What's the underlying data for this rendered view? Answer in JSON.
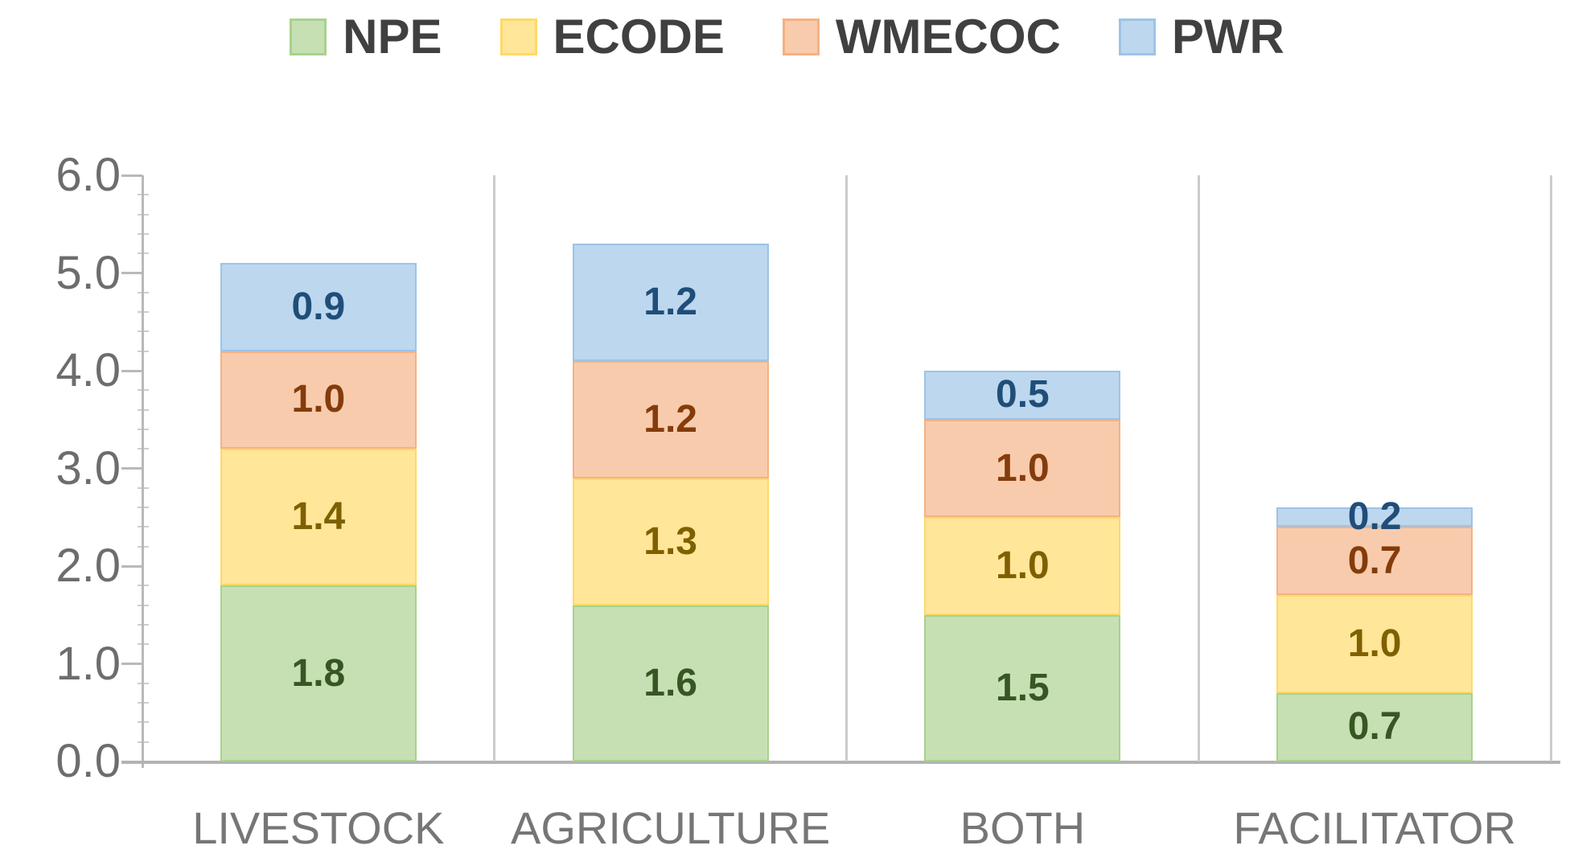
{
  "chart_data": {
    "type": "bar",
    "stacked": true,
    "legend_position": "top",
    "categories": [
      "LIVESTOCK",
      "AGRICULTURE",
      "BOTH",
      "FACILITATOR"
    ],
    "series": [
      {
        "name": "NPE",
        "fill": "#c6e0b4",
        "border": "#a9d18e",
        "label_color": "#375623",
        "values": [
          1.8,
          1.6,
          1.5,
          0.7
        ]
      },
      {
        "name": "ECODE",
        "fill": "#ffe699",
        "border": "#ffd966",
        "label_color": "#7f6000",
        "values": [
          1.4,
          1.3,
          1.0,
          1.0
        ]
      },
      {
        "name": "WMECOC",
        "fill": "#f8cbad",
        "border": "#f4b183",
        "label_color": "#843c0b",
        "values": [
          1.0,
          1.2,
          1.0,
          0.7
        ]
      },
      {
        "name": "PWR",
        "fill": "#bdd7ee",
        "border": "#9dc3e6",
        "label_color": "#1f4e79",
        "values": [
          0.9,
          1.2,
          0.5,
          0.2
        ]
      }
    ],
    "y_axis": {
      "min": 0,
      "max": 6,
      "step": 1,
      "minor_step": 0.2,
      "tick_labels": [
        "0.0",
        "1.0",
        "2.0",
        "3.0",
        "4.0",
        "5.0",
        "6.0"
      ]
    },
    "data_label_decimals": 1,
    "grid": "vertical category separators"
  },
  "colors": {
    "background": "#ffffff",
    "axis_line": "#b9b9b9",
    "separator": "#cbcbcb",
    "baseline": "#b3b3b3",
    "minor_tick": "#cecece",
    "tick_text": "#6d6d6d",
    "category_text": "#767676",
    "legend_text": "#404040"
  }
}
